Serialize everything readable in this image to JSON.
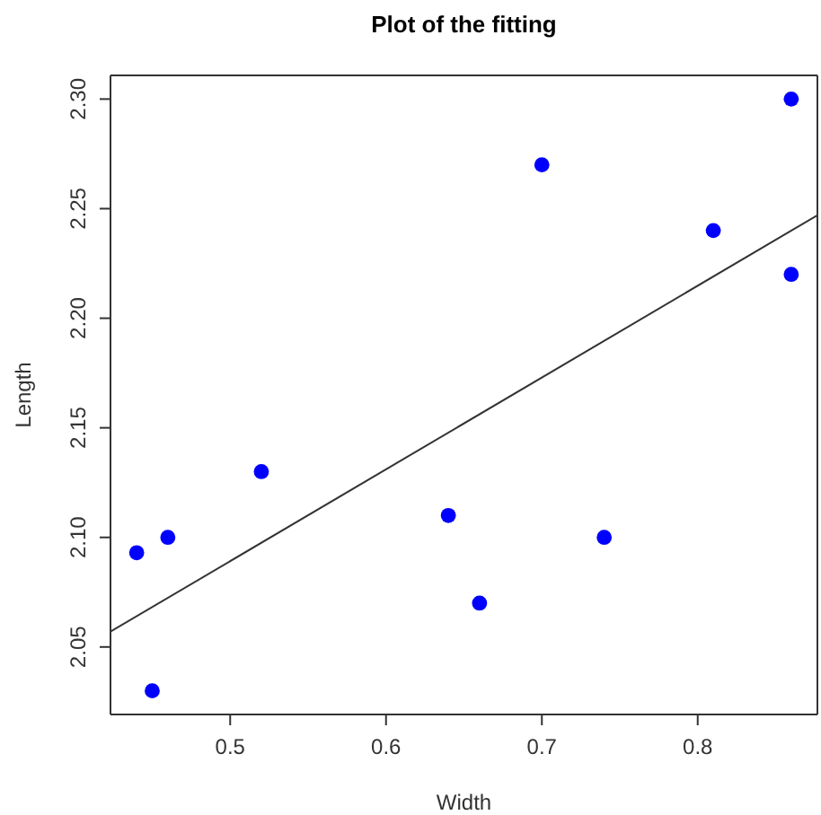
{
  "chart_data": {
    "type": "scatter",
    "title": "Plot of the fitting",
    "xlabel": "Width",
    "ylabel": "Length",
    "xlim": [
      0.4232,
      0.8768
    ],
    "ylim": [
      2.0192,
      2.3108
    ],
    "xticks": [
      0.5,
      0.6,
      0.7,
      0.8
    ],
    "yticks": [
      2.05,
      {
        "value": 2.1,
        "label": "2.10"
      },
      2.15,
      {
        "value": 2.2,
        "label": "2.20"
      },
      2.25,
      {
        "value": 2.3,
        "label": "2.30"
      }
    ],
    "grid": false,
    "marker": "circle",
    "series": [
      {
        "color": "#0000ff",
        "x": [
          0.44,
          0.45,
          0.46,
          0.52,
          0.64,
          0.66,
          0.7,
          0.74,
          0.81,
          0.86,
          0.86
        ],
        "values": [
          2.093,
          2.03,
          2.1,
          2.13,
          2.11,
          2.07,
          2.27,
          2.1,
          2.24,
          2.3,
          2.22
        ]
      },
      {
        "type": "line",
        "color": "#333333",
        "marker": "none",
        "x": [
          0.4232,
          0.8768
        ],
        "values": [
          2.057,
          2.247
        ]
      }
    ]
  }
}
